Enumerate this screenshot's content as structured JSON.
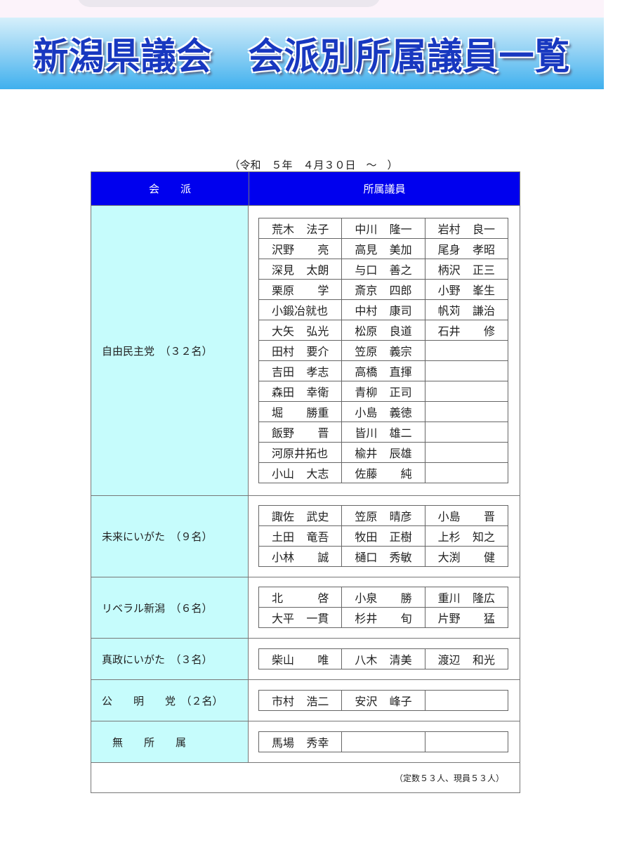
{
  "banner": {
    "title": "新潟県議会　会派別所属議員一覧"
  },
  "date_range": "（令和　５年　４月３０日　～　）",
  "table": {
    "headers": {
      "faction": "会　　派",
      "members": "所属議員"
    },
    "groups": [
      {
        "party": "自由民主党　（３２名）",
        "pad": [
          17,
          17
        ],
        "rows": [
          [
            [
              "荒木",
              "法子"
            ],
            [
              "中川",
              "隆一"
            ],
            [
              "岩村",
              "良一"
            ]
          ],
          [
            [
              "沢野",
              "亮"
            ],
            [
              "高見",
              "美加"
            ],
            [
              "尾身",
              "孝昭"
            ]
          ],
          [
            [
              "深見",
              "太朗"
            ],
            [
              "与口",
              "善之"
            ],
            [
              "柄沢",
              "正三"
            ]
          ],
          [
            [
              "栗原",
              "学"
            ],
            [
              "斎京",
              "四郎"
            ],
            [
              "小野",
              "峯生"
            ]
          ],
          [
            [
              "小鍛冶就也",
              ""
            ],
            [
              "中村",
              "康司"
            ],
            [
              "帆苅",
              "謙治"
            ]
          ],
          [
            [
              "大矢",
              "弘光"
            ],
            [
              "松原",
              "良道"
            ],
            [
              "石井",
              "修"
            ]
          ],
          [
            [
              "田村",
              "要介"
            ],
            [
              "笠原",
              "義宗"
            ],
            null
          ],
          [
            [
              "吉田",
              "孝志"
            ],
            [
              "高橋",
              "直揮"
            ],
            null
          ],
          [
            [
              "森田",
              "幸衛"
            ],
            [
              "青柳",
              "正司"
            ],
            null
          ],
          [
            [
              "堀",
              "勝重"
            ],
            [
              "小島",
              "義徳"
            ],
            null
          ],
          [
            [
              "飯野",
              "晋"
            ],
            [
              "皆川",
              "雄二"
            ],
            null
          ],
          [
            [
              "河原井拓也",
              ""
            ],
            [
              "楡井",
              "辰雄"
            ],
            null
          ],
          [
            [
              "小山",
              "大志"
            ],
            [
              "佐藤",
              "純"
            ],
            null
          ]
        ]
      },
      {
        "party": "未来にいがた　（９名）",
        "pad": [
          13,
          14
        ],
        "rows": [
          [
            [
              "諏佐",
              "武史"
            ],
            [
              "笠原",
              "晴彦"
            ],
            [
              "小島",
              "晋"
            ]
          ],
          [
            [
              "土田",
              "竜吾"
            ],
            [
              "牧田",
              "正樹"
            ],
            [
              "上杉",
              "知之"
            ]
          ],
          [
            [
              "小林",
              "誠"
            ],
            [
              "樋口",
              "秀敏"
            ],
            [
              "大渕",
              "健"
            ]
          ]
        ]
      },
      {
        "party": "リベラル新潟　（６名）",
        "pad": [
          13,
          14
        ],
        "rows": [
          [
            [
              "北",
              "啓"
            ],
            [
              "小泉",
              "勝"
            ],
            [
              "重川",
              "隆広"
            ]
          ],
          [
            [
              "大平",
              "一貫"
            ],
            [
              "杉井",
              "旬"
            ],
            [
              "片野",
              "猛"
            ]
          ]
        ]
      },
      {
        "party": "真政にいがた　（３名）",
        "pad": [
          14,
          14
        ],
        "rows": [
          [
            [
              "柴山",
              "唯"
            ],
            [
              "八木",
              "清美"
            ],
            [
              "渡辺",
              "和光"
            ]
          ]
        ]
      },
      {
        "party": "公　　明　　党　（２名）",
        "pad": [
          14,
          14
        ],
        "rows": [
          [
            [
              "市村",
              "浩二"
            ],
            [
              "安沢",
              "峰子"
            ],
            null
          ]
        ]
      },
      {
        "party": "　無　　所　　属",
        "pad": [
          14,
          14
        ],
        "rows": [
          [
            [
              "馬場",
              "秀幸"
            ],
            null,
            null
          ]
        ]
      }
    ],
    "footer": "（定数５３人、現員５３人）"
  },
  "colors": {
    "header_bg": "#0000ee",
    "party_bg": "#c6fcfc",
    "banner_title": "#1838c0"
  }
}
